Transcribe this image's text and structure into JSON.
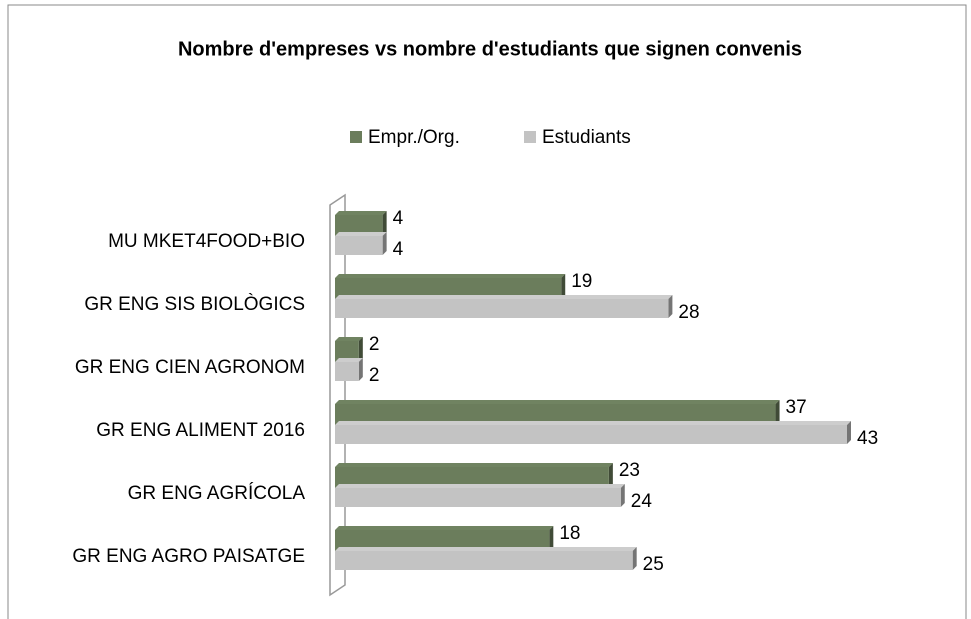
{
  "chart_data": {
    "type": "bar",
    "orientation": "horizontal",
    "title": "Nombre d'empreses  vs nombre d'estudiants que signen convenis",
    "categories": [
      "MU MKET4FOOD+BIO",
      "GR ENG SIS BIOLÒGICS",
      "GR ENG CIEN AGRONOM",
      "GR ENG ALIMENT 2016",
      "GR ENG AGRÍCOLA",
      "GR ENG AGRO PAISATGE"
    ],
    "series": [
      {
        "name": "Empr./Org.",
        "color": "#6b7d5c",
        "values": [
          4,
          19,
          2,
          37,
          23,
          18
        ]
      },
      {
        "name": "Estudiants",
        "color": "#c3c3c3",
        "values": [
          4,
          28,
          2,
          43,
          24,
          25
        ]
      }
    ],
    "legend": "top"
  }
}
